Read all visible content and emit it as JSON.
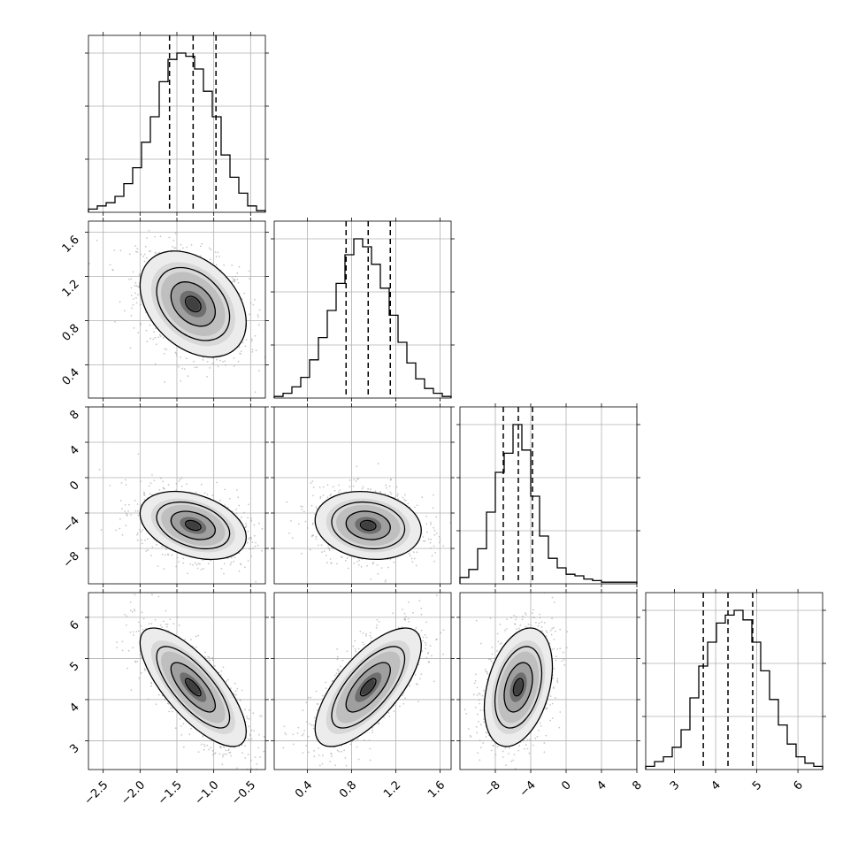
{
  "chart_data": {
    "type": "corner",
    "title": "",
    "parameters": [
      {
        "name": "",
        "range": [
          -2.7,
          -0.3
        ],
        "ticks": [
          -2.5,
          -2.0,
          -1.5,
          -1.0,
          -0.5
        ],
        "tick_labels": [
          "−2.5",
          "−2.0",
          "−1.5",
          "−1.0",
          "−0.5"
        ],
        "quantiles": [
          -1.6,
          -1.28,
          -0.97
        ],
        "median": -1.28,
        "sigma": 0.3
      },
      {
        "name": "",
        "range": [
          0.1,
          1.7
        ],
        "ticks": [
          0.4,
          0.8,
          1.2,
          1.6
        ],
        "tick_labels": [
          "0.4",
          "0.8",
          "1.2",
          "1.6"
        ],
        "quantiles": [
          0.75,
          0.95,
          1.15
        ],
        "median": 0.95,
        "sigma": 0.2
      },
      {
        "name": "",
        "range": [
          -12,
          8
        ],
        "ticks": [
          -8,
          -4,
          0,
          4,
          8
        ],
        "tick_labels": [
          "−8",
          "−4",
          "0",
          "4",
          "8"
        ],
        "quantiles": [
          -7.1,
          -5.4,
          -3.8
        ],
        "median": -5.4,
        "sigma": 1.6
      },
      {
        "name": "",
        "range": [
          2.3,
          6.6
        ],
        "ticks": [
          3,
          4,
          5,
          6
        ],
        "tick_labels": [
          "3",
          "4",
          "5",
          "6"
        ],
        "quantiles": [
          3.7,
          4.3,
          4.9
        ],
        "median": 4.3,
        "sigma": 0.6
      }
    ],
    "histograms": [
      {
        "param": 0,
        "counts": [
          2,
          4,
          6,
          10,
          18,
          28,
          44,
          60,
          82,
          96,
          100,
          98,
          90,
          76,
          60,
          36,
          22,
          12,
          4,
          1
        ]
      },
      {
        "param": 1,
        "counts": [
          1,
          3,
          7,
          13,
          24,
          38,
          55,
          72,
          90,
          100,
          95,
          84,
          69,
          52,
          35,
          22,
          12,
          6,
          3,
          1
        ]
      },
      {
        "param": 2,
        "counts": [
          4,
          9,
          22,
          45,
          70,
          82,
          100,
          84,
          55,
          30,
          16,
          10,
          6,
          5,
          3,
          2,
          1,
          1,
          1,
          1
        ]
      },
      {
        "param": 3,
        "counts": [
          2,
          5,
          8,
          14,
          25,
          45,
          65,
          80,
          92,
          97,
          100,
          94,
          80,
          62,
          44,
          28,
          16,
          8,
          4,
          2
        ]
      }
    ],
    "correlations": [
      {
        "x": 0,
        "y": 1,
        "rho": -0.35
      },
      {
        "x": 0,
        "y": 2,
        "rho": -0.35
      },
      {
        "x": 1,
        "y": 2,
        "rho": -0.15
      },
      {
        "x": 0,
        "y": 3,
        "rho": -0.75
      },
      {
        "x": 1,
        "y": 3,
        "rho": 0.7
      },
      {
        "x": 2,
        "y": 3,
        "rho": 0.35
      }
    ],
    "grid": true,
    "colors": {
      "line": "#000000",
      "grid": "#b0b0b0",
      "scatter": "#9a9a9a"
    }
  }
}
